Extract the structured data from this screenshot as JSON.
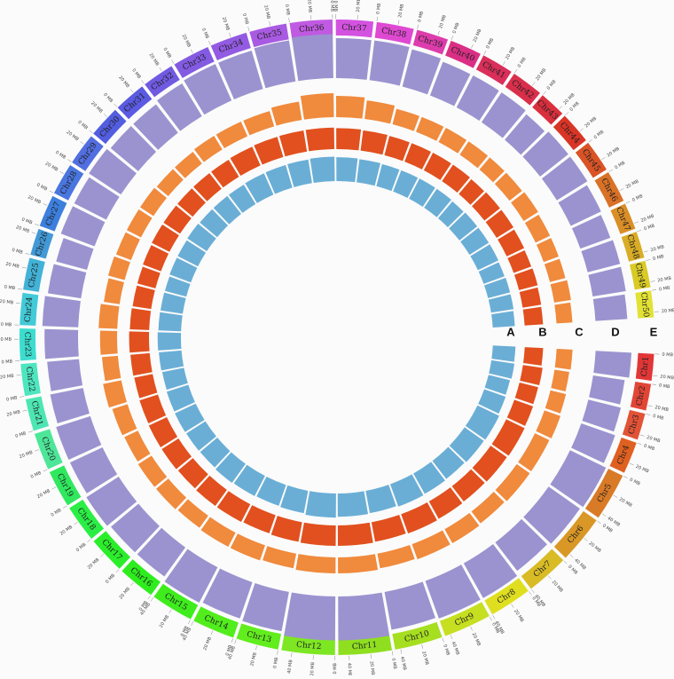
{
  "chart_data": {
    "type": "circos",
    "ticks": [
      {
        "value": 0,
        "label": "0 MB"
      },
      {
        "value": 20,
        "label": "20 MB"
      },
      {
        "value": 40,
        "label": "40 MB"
      }
    ],
    "chromosomes": [
      {
        "name": "Chr1",
        "length": 25,
        "color": "hsl(0,75%,55%)"
      },
      {
        "name": "Chr2",
        "length": 25,
        "color": "hsl(5,75%,55%)"
      },
      {
        "name": "Chr3",
        "length": 25,
        "color": "hsl(10,75%,55%)"
      },
      {
        "name": "Chr4",
        "length": 30,
        "color": "hsl(20,75%,50%)"
      },
      {
        "name": "Chr5",
        "length": 45,
        "color": "hsl(28,70%,50%)"
      },
      {
        "name": "Chr6",
        "length": 45,
        "color": "hsl(38,70%,50%)"
      },
      {
        "name": "Chr7",
        "length": 40,
        "color": "hsl(50,70%,50%)"
      },
      {
        "name": "Chr8",
        "length": 40,
        "color": "hsl(60,75%,50%)"
      },
      {
        "name": "Chr9",
        "length": 45,
        "color": "hsl(68,75%,50%)"
      },
      {
        "name": "Chr10",
        "length": 45,
        "color": "hsl(78,75%,50%)"
      },
      {
        "name": "Chr11",
        "length": 50,
        "color": "hsl(85,75%,50%)"
      },
      {
        "name": "Chr12",
        "length": 50,
        "color": "hsl(92,80%,52%)"
      },
      {
        "name": "Chr13",
        "length": 40,
        "color": "hsl(100,85%,52%)"
      },
      {
        "name": "Chr14",
        "length": 40,
        "color": "hsl(105,85%,52%)"
      },
      {
        "name": "Chr15",
        "length": 40,
        "color": "hsl(110,85%,52%)"
      },
      {
        "name": "Chr16",
        "length": 35,
        "color": "hsl(115,85%,52%)"
      },
      {
        "name": "Chr17",
        "length": 35,
        "color": "hsl(120,85%,55%)"
      },
      {
        "name": "Chr18",
        "length": 35,
        "color": "hsl(128,85%,55%)"
      },
      {
        "name": "Chr19",
        "length": 35,
        "color": "hsl(135,80%,55%)"
      },
      {
        "name": "Chr20",
        "length": 35,
        "color": "hsl(150,75%,60%)"
      },
      {
        "name": "Chr21",
        "length": 30,
        "color": "hsl(160,75%,60%)"
      },
      {
        "name": "Chr22",
        "length": 30,
        "color": "hsl(165,75%,60%)"
      },
      {
        "name": "Chr23",
        "length": 30,
        "color": "hsl(175,70%,55%)"
      },
      {
        "name": "Chr24",
        "length": 30,
        "color": "hsl(185,65%,55%)"
      },
      {
        "name": "Chr25",
        "length": 30,
        "color": "hsl(195,65%,55%)"
      },
      {
        "name": "Chr26",
        "length": 25,
        "color": "hsl(205,65%,55%)"
      },
      {
        "name": "Chr27",
        "length": 30,
        "color": "hsl(215,70%,55%)"
      },
      {
        "name": "Chr28",
        "length": 30,
        "color": "hsl(222,70%,58%)"
      },
      {
        "name": "Chr29",
        "length": 30,
        "color": "hsl(228,70%,60%)"
      },
      {
        "name": "Chr30",
        "length": 30,
        "color": "hsl(235,70%,60%)"
      },
      {
        "name": "Chr31",
        "length": 30,
        "color": "hsl(240,70%,62%)"
      },
      {
        "name": "Chr32",
        "length": 30,
        "color": "hsl(250,70%,62%)"
      },
      {
        "name": "Chr33",
        "length": 35,
        "color": "hsl(258,70%,62%)"
      },
      {
        "name": "Chr34",
        "length": 35,
        "color": "hsl(265,70%,62%)"
      },
      {
        "name": "Chr35",
        "length": 35,
        "color": "hsl(275,70%,62%)"
      },
      {
        "name": "Chr36",
        "length": 40,
        "color": "hsl(285,70%,62%)"
      },
      {
        "name": "Chr37",
        "length": 35,
        "color": "hsl(295,70%,60%)"
      },
      {
        "name": "Chr38",
        "length": 35,
        "color": "hsl(305,70%,58%)"
      },
      {
        "name": "Chr39",
        "length": 30,
        "color": "hsl(318,70%,55%)"
      },
      {
        "name": "Chr40",
        "length": 30,
        "color": "hsl(330,70%,52%)"
      },
      {
        "name": "Chr41",
        "length": 30,
        "color": "hsl(345,70%,52%)"
      },
      {
        "name": "Chr42",
        "length": 30,
        "color": "hsl(350,70%,52%)"
      },
      {
        "name": "Chr43",
        "length": 25,
        "color": "hsl(355,70%,52%)"
      },
      {
        "name": "Chr44",
        "length": 30,
        "color": "hsl(5,70%,50%)"
      },
      {
        "name": "Chr45",
        "length": 30,
        "color": "hsl(15,70%,50%)"
      },
      {
        "name": "Chr46",
        "length": 30,
        "color": "hsl(25,70%,50%)"
      },
      {
        "name": "Chr47",
        "length": 25,
        "color": "hsl(35,70%,50%)"
      },
      {
        "name": "Chr48",
        "length": 25,
        "color": "hsl(45,70%,50%)"
      },
      {
        "name": "Chr49",
        "length": 25,
        "color": "hsl(55,70%,50%)"
      },
      {
        "name": "Chr50",
        "length": 25,
        "color": "hsl(60,75%,55%)"
      }
    ],
    "tracks": [
      {
        "name": "A",
        "color": "#6aaed6",
        "values": [
          0.8,
          0.82,
          0.78,
          0.8,
          0.85,
          0.83,
          0.8,
          0.82,
          0.84,
          0.8,
          0.82,
          0.85,
          0.8,
          0.78,
          0.8,
          0.82,
          0.79,
          0.8,
          0.81,
          0.8,
          0.78,
          0.8,
          0.82,
          0.8,
          0.79,
          0.78,
          0.8,
          0.8,
          0.82,
          0.8,
          0.8,
          0.8,
          0.82,
          0.83,
          0.84,
          0.86,
          0.84,
          0.82,
          0.8,
          0.8,
          0.8,
          0.8,
          0.78,
          0.8,
          0.8,
          0.8,
          0.78,
          0.8,
          0.8,
          0.78
        ]
      },
      {
        "name": "B",
        "color": "#e1501e",
        "values": [
          0.65,
          0.7,
          0.68,
          0.7,
          0.72,
          0.7,
          0.68,
          0.7,
          0.72,
          0.7,
          0.72,
          0.72,
          0.7,
          0.68,
          0.7,
          0.7,
          0.68,
          0.7,
          0.7,
          0.68,
          0.66,
          0.68,
          0.7,
          0.68,
          0.66,
          0.66,
          0.68,
          0.7,
          0.7,
          0.7,
          0.7,
          0.7,
          0.72,
          0.74,
          0.75,
          0.76,
          0.74,
          0.72,
          0.7,
          0.7,
          0.7,
          0.7,
          0.68,
          0.7,
          0.7,
          0.68,
          0.66,
          0.68,
          0.66,
          0.65
        ]
      },
      {
        "name": "C",
        "color": "#f08a3c",
        "values": [
          0.3,
          0.28,
          0.3,
          0.32,
          0.3,
          0.3,
          0.28,
          0.3,
          0.3,
          0.28,
          0.3,
          0.3,
          0.28,
          0.3,
          0.3,
          0.28,
          0.3,
          0.3,
          0.28,
          0.3,
          0.35,
          0.3,
          0.32,
          0.35,
          0.3,
          0.32,
          0.3,
          0.3,
          0.3,
          0.28,
          0.28,
          0.3,
          0.3,
          0.3,
          0.35,
          0.45,
          0.4,
          0.35,
          0.3,
          0.3,
          0.3,
          0.3,
          0.3,
          0.3,
          0.32,
          0.3,
          0.3,
          0.3,
          0.32,
          0.3
        ]
      },
      {
        "name": "D",
        "color": "#9b93cf",
        "values": [
          0.45,
          0.4,
          0.42,
          0.45,
          0.5,
          0.48,
          0.45,
          0.5,
          0.5,
          0.48,
          0.55,
          0.55,
          0.5,
          0.48,
          0.5,
          0.45,
          0.45,
          0.48,
          0.45,
          0.45,
          0.42,
          0.4,
          0.42,
          0.45,
          0.42,
          0.4,
          0.45,
          0.45,
          0.48,
          0.45,
          0.45,
          0.48,
          0.5,
          0.5,
          0.52,
          0.55,
          0.5,
          0.5,
          0.48,
          0.45,
          0.45,
          0.45,
          0.42,
          0.45,
          0.45,
          0.42,
          0.4,
          0.42,
          0.42,
          0.4
        ]
      },
      {
        "name": "E"
      }
    ]
  }
}
